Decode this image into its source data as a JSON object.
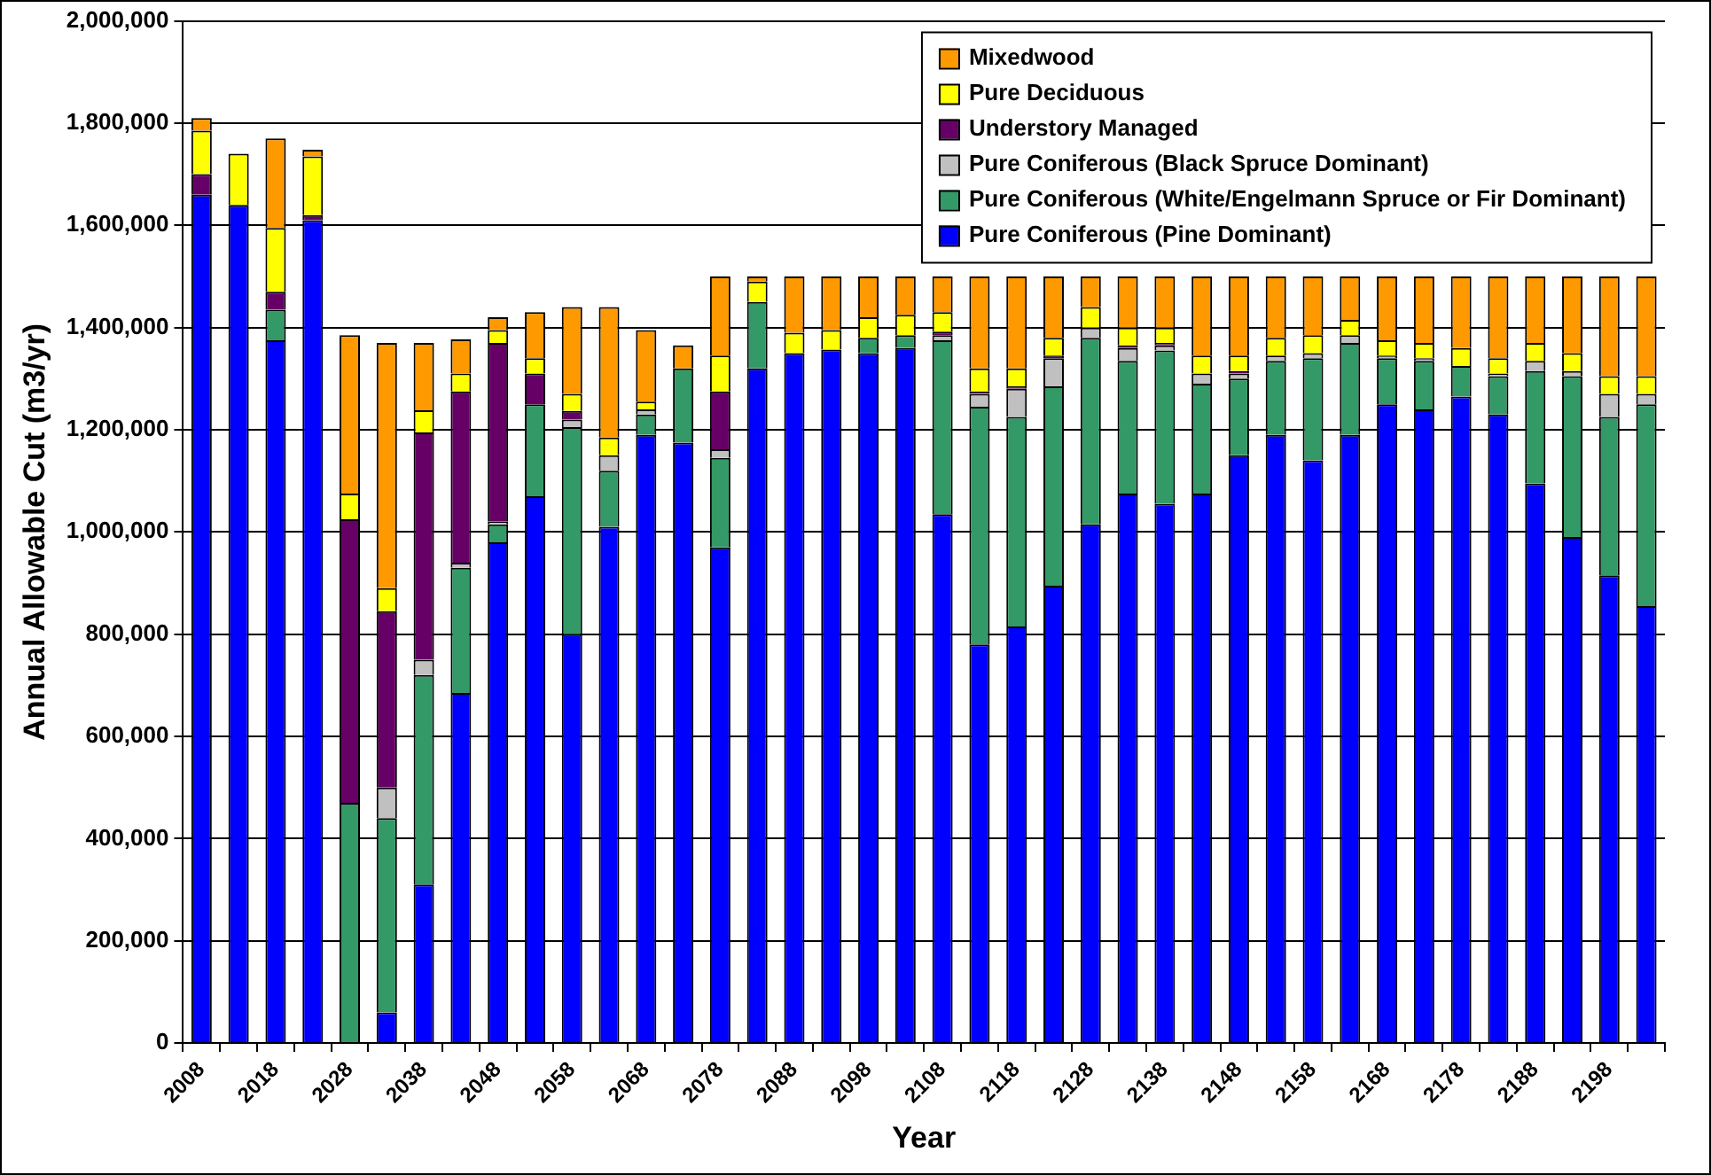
{
  "chart_data": {
    "type": "bar",
    "stacked": true,
    "xlabel": "Year",
    "ylabel": "Annual Allowable Cut (m3/yr)",
    "categories": [
      "2008",
      null,
      "2018",
      null,
      "2028",
      null,
      "2038",
      null,
      "2048",
      null,
      "2058",
      null,
      "2068",
      null,
      "2078",
      null,
      "2088",
      null,
      "2098",
      null,
      "2108",
      null,
      "2118",
      null,
      "2128",
      null,
      "2138",
      null,
      "2148",
      null,
      "2158",
      null,
      "2168",
      null,
      "2178",
      null,
      "2188",
      null,
      "2198",
      null
    ],
    "ylim": [
      0,
      2000000
    ],
    "yticks": [
      0,
      {
        "value": 200000,
        "label": "200,000"
      },
      {
        "value": 400000,
        "label": "400,000"
      },
      {
        "value": 600000,
        "label": "600,000"
      },
      {
        "value": 800000,
        "label": "800,000"
      },
      {
        "value": 1000000,
        "label": "1,000,000"
      },
      {
        "value": 1200000,
        "label": "1,200,000"
      },
      {
        "value": 1400000,
        "label": "1,400,000"
      },
      {
        "value": 1600000,
        "label": "1,600,000"
      },
      {
        "value": 1800000,
        "label": "1,800,000"
      },
      {
        "value": 2000000,
        "label": "2,000,000"
      }
    ],
    "grid": "y",
    "legend": "top right",
    "series": [
      {
        "name": "Pure Coniferous (Pine Dominant)",
        "color": "#0000ff",
        "values": [
          1660000,
          1640000,
          1375000,
          1610000,
          0,
          60000,
          310000,
          685000,
          980000,
          1070000,
          800000,
          1010000,
          1190000,
          1175000,
          970000,
          1320000,
          1350000,
          1357000,
          1350000,
          1360000,
          1035000,
          780000,
          815000,
          895000,
          1015000,
          1075000,
          1055000,
          1075000,
          1150000,
          1190000,
          1140000,
          1190000,
          1250000,
          1240000,
          1265000,
          1230000,
          1095000,
          990000,
          915000,
          855000
        ]
      },
      {
        "name": "Pure Coniferous (White/Engelmann Spruce or Fir Dominant)",
        "color": "#339966",
        "values": [
          0,
          0,
          60000,
          0,
          470000,
          380000,
          410000,
          245000,
          35000,
          180000,
          405000,
          110000,
          40000,
          145000,
          175000,
          130000,
          0,
          0,
          30000,
          25000,
          340000,
          465000,
          410000,
          390000,
          365000,
          260000,
          300000,
          215000,
          150000,
          145000,
          200000,
          180000,
          90000,
          95000,
          60000,
          75000,
          220000,
          315000,
          310000,
          395000
        ]
      },
      {
        "name": "Pure Coniferous (Black Spruce Dominant)",
        "color": "#c0c0c0",
        "values": [
          0,
          0,
          0,
          0,
          0,
          60000,
          30000,
          10000,
          5000,
          0,
          15000,
          30000,
          10000,
          0,
          17000,
          0,
          0,
          0,
          0,
          0,
          10000,
          25000,
          55000,
          55000,
          20000,
          25000,
          10000,
          20000,
          10000,
          10000,
          10000,
          15000,
          5000,
          5000,
          0,
          5000,
          20000,
          10000,
          45000,
          20000
        ]
      },
      {
        "name": "Understory Managed",
        "color": "#660066",
        "values": [
          40000,
          0,
          35000,
          10000,
          555000,
          345000,
          445000,
          335000,
          350000,
          60000,
          17000,
          0,
          0,
          0,
          113000,
          0,
          0,
          0,
          0,
          0,
          7000,
          5000,
          5000,
          5000,
          0,
          5000,
          5000,
          0,
          5000,
          0,
          0,
          0,
          0,
          0,
          0,
          0,
          0,
          0,
          0,
          0
        ]
      },
      {
        "name": "Pure Deciduous",
        "color": "#ffff00",
        "values": [
          85000,
          100000,
          125000,
          115000,
          50000,
          45000,
          43000,
          35000,
          25000,
          30000,
          33000,
          35000,
          15000,
          0,
          70000,
          40000,
          40000,
          38000,
          40000,
          40000,
          38000,
          45000,
          35000,
          35000,
          40000,
          35000,
          30000,
          35000,
          30000,
          35000,
          35000,
          30000,
          30000,
          30000,
          35000,
          30000,
          35000,
          35000,
          35000,
          35000
        ]
      },
      {
        "name": "Mixedwood",
        "color": "#ff9900",
        "values": [
          25000,
          0,
          175000,
          13000,
          310000,
          480000,
          132000,
          67000,
          25000,
          90000,
          170000,
          255000,
          140000,
          45000,
          155000,
          10000,
          110000,
          105000,
          80000,
          75000,
          70000,
          180000,
          180000,
          120000,
          60000,
          100000,
          100000,
          155000,
          155000,
          120000,
          115000,
          85000,
          125000,
          130000,
          140000,
          160000,
          130000,
          150000,
          195000,
          195000
        ]
      }
    ]
  }
}
